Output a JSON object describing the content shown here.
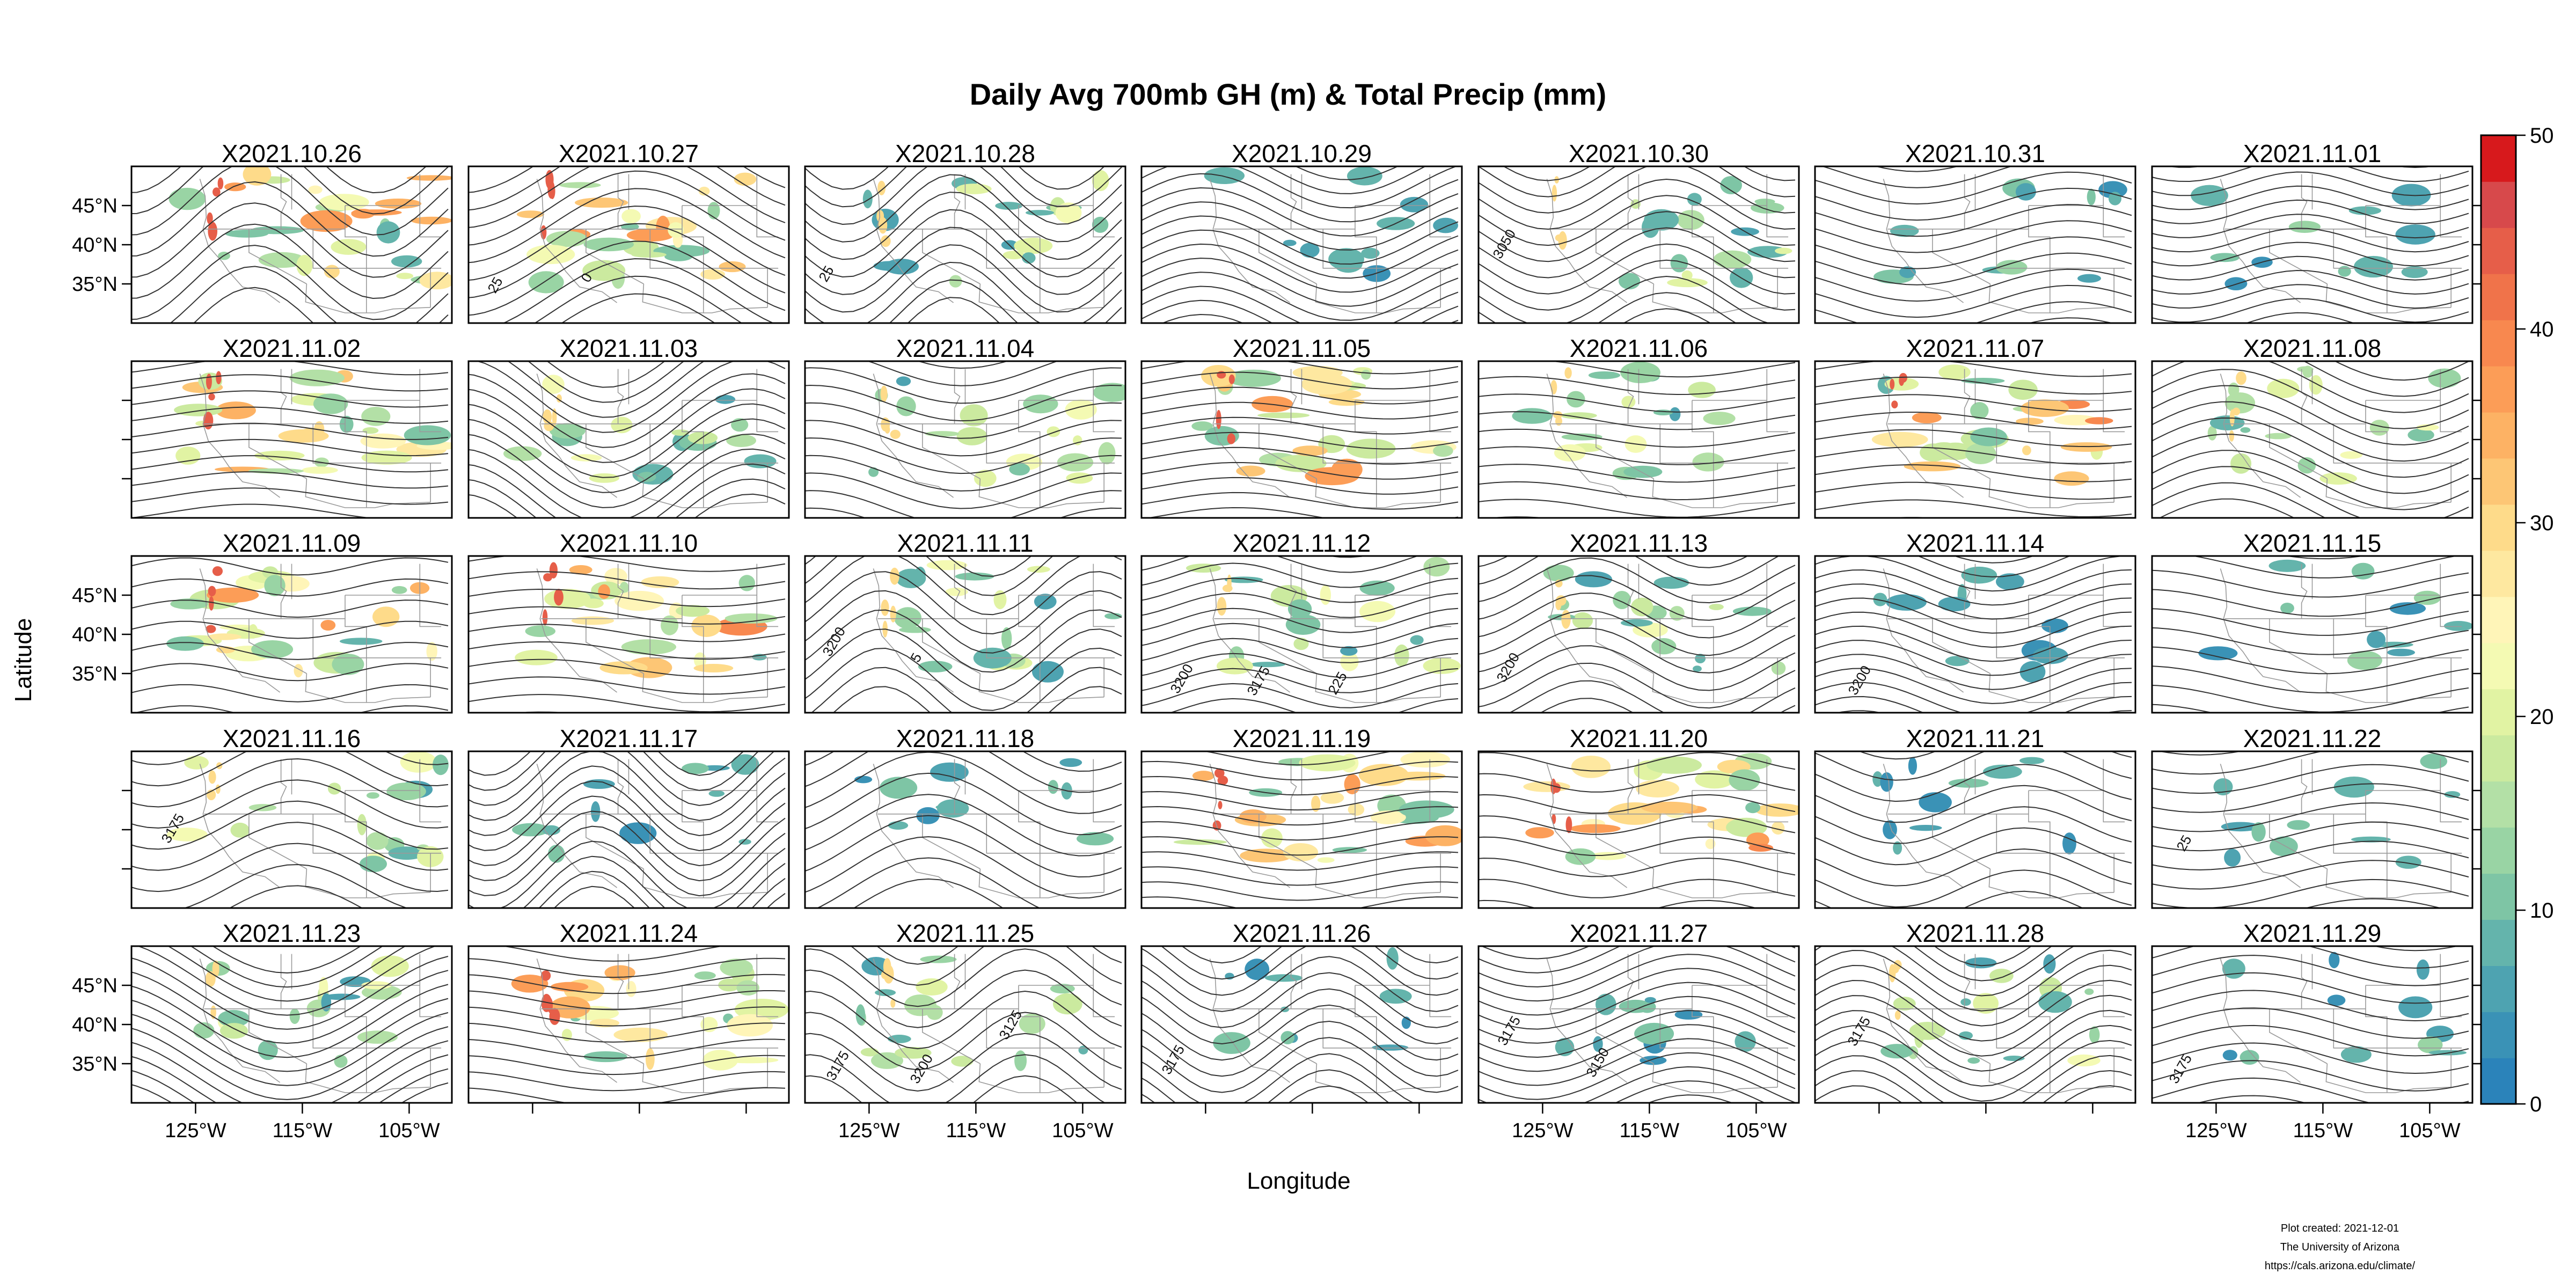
{
  "chart_data": {
    "type": "heatmap",
    "title": "Daily Avg 700mb GH (m) & Total Precip (mm)",
    "xlabel": "Longitude",
    "ylabel": "Latitude",
    "x_tick_labels": [
      "125°W",
      "115°W",
      "105°W"
    ],
    "y_tick_labels": [
      "45°N",
      "40°N",
      "35°N"
    ],
    "x_ticks_deg": [
      -125,
      -115,
      -105
    ],
    "y_ticks_deg": [
      45,
      40,
      35
    ],
    "xlim": [
      -131,
      -101
    ],
    "ylim": [
      30,
      50
    ],
    "colorbar": {
      "min": 0,
      "max": 50,
      "ticks": [
        0,
        10,
        20,
        30,
        40,
        50
      ],
      "levels": 25
    },
    "panel_layout": {
      "rows": 5,
      "cols": 7
    },
    "panels": [
      {
        "label": "X2021.10.26",
        "precip": "heavy",
        "contours": []
      },
      {
        "label": "X2021.10.27",
        "precip": "heavy",
        "contours": [
          "25",
          "0"
        ]
      },
      {
        "label": "X2021.10.28",
        "precip": "moderate",
        "contours": [
          "25"
        ]
      },
      {
        "label": "X2021.10.29",
        "precip": "light",
        "contours": []
      },
      {
        "label": "X2021.10.30",
        "precip": "moderate",
        "contours": [
          "3050"
        ]
      },
      {
        "label": "X2021.10.31",
        "precip": "light",
        "contours": []
      },
      {
        "label": "X2021.11.01",
        "precip": "light",
        "contours": []
      },
      {
        "label": "X2021.11.02",
        "precip": "heavy",
        "contours": []
      },
      {
        "label": "X2021.11.03",
        "precip": "moderate",
        "contours": []
      },
      {
        "label": "X2021.11.04",
        "precip": "moderate",
        "contours": []
      },
      {
        "label": "X2021.11.05",
        "precip": "heavy",
        "contours": []
      },
      {
        "label": "X2021.11.06",
        "precip": "moderate",
        "contours": []
      },
      {
        "label": "X2021.11.07",
        "precip": "heavy",
        "contours": []
      },
      {
        "label": "X2021.11.08",
        "precip": "moderate",
        "contours": []
      },
      {
        "label": "X2021.11.09",
        "precip": "heavy",
        "contours": []
      },
      {
        "label": "X2021.11.10",
        "precip": "heavy",
        "contours": []
      },
      {
        "label": "X2021.11.11",
        "precip": "moderate",
        "contours": [
          "3200",
          "5"
        ]
      },
      {
        "label": "X2021.11.12",
        "precip": "moderate",
        "contours": [
          "3200",
          "3175",
          "225"
        ]
      },
      {
        "label": "X2021.11.13",
        "precip": "moderate",
        "contours": [
          "3200"
        ]
      },
      {
        "label": "X2021.11.14",
        "precip": "light",
        "contours": [
          "3200"
        ]
      },
      {
        "label": "X2021.11.15",
        "precip": "light",
        "contours": []
      },
      {
        "label": "X2021.11.16",
        "precip": "moderate",
        "contours": [
          "3175"
        ]
      },
      {
        "label": "X2021.11.17",
        "precip": "light",
        "contours": []
      },
      {
        "label": "X2021.11.18",
        "precip": "light",
        "contours": []
      },
      {
        "label": "X2021.11.19",
        "precip": "heavy",
        "contours": []
      },
      {
        "label": "X2021.11.20",
        "precip": "heavy",
        "contours": []
      },
      {
        "label": "X2021.11.21",
        "precip": "light",
        "contours": []
      },
      {
        "label": "X2021.11.22",
        "precip": "light",
        "contours": [
          "25"
        ]
      },
      {
        "label": "X2021.11.23",
        "precip": "moderate",
        "contours": []
      },
      {
        "label": "X2021.11.24",
        "precip": "heavy",
        "contours": []
      },
      {
        "label": "X2021.11.25",
        "precip": "moderate",
        "contours": [
          "3175",
          "3200",
          "3125"
        ]
      },
      {
        "label": "X2021.11.26",
        "precip": "light",
        "contours": [
          "3175"
        ]
      },
      {
        "label": "X2021.11.27",
        "precip": "light",
        "contours": [
          "3175",
          "3150"
        ]
      },
      {
        "label": "X2021.11.28",
        "precip": "moderate",
        "contours": [
          "3175"
        ]
      },
      {
        "label": "X2021.11.29",
        "precip": "light",
        "contours": [
          "3175"
        ]
      }
    ]
  },
  "credits": {
    "created": "Plot created: 2021-12-01",
    "org": "The University of Arizona",
    "url": "https://cals.arizona.edu/climate/"
  },
  "colors": {
    "palette": [
      "#2b83ba",
      "#3a92b6",
      "#4ea3b1",
      "#64b4ac",
      "#7ec5a5",
      "#99d4a4",
      "#b3e0a6",
      "#cbea9f",
      "#e1f3a3",
      "#f4fab3",
      "#fff5b8",
      "#fee8a0",
      "#fedb8a",
      "#fdc675",
      "#fdb264",
      "#fc9d57",
      "#f8884f",
      "#f0734a",
      "#e65e49",
      "#d7494b",
      "#d7191c"
    ],
    "contour": "#333333",
    "boundary": "#9a9a9a",
    "frame": "#000000"
  }
}
